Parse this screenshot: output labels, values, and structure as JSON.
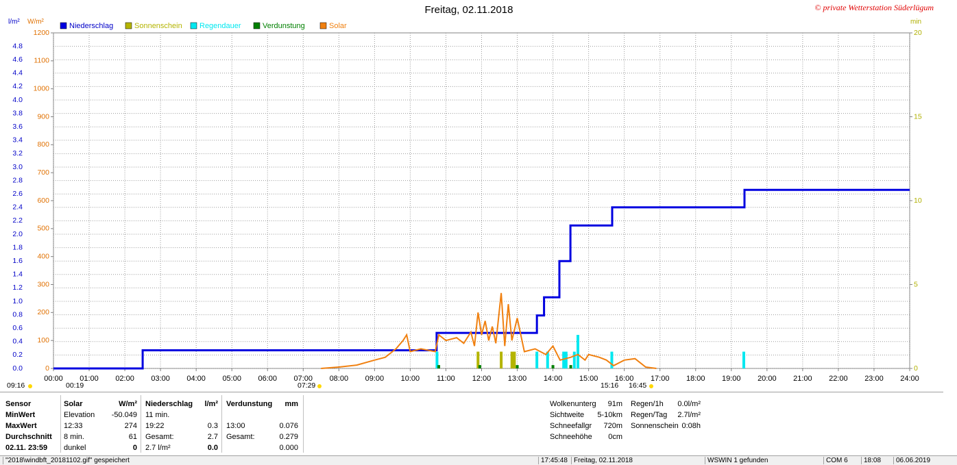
{
  "chart_data": {
    "type": "line",
    "title": "Freitag, 02.11.2018",
    "watermark": "© private Wetterstation Süderlügum",
    "y_label": "l/m²",
    "y2_label": "W/m²",
    "y3_label": "min",
    "ycolor": "#0000c8",
    "y2color": "#e07000",
    "y3color": "#b0b000",
    "xlim": [
      0,
      24
    ],
    "xticks": [
      {
        "value": 0,
        "label": "00:00"
      },
      {
        "value": 1,
        "label": "01:00"
      },
      {
        "value": 2,
        "label": "02:00"
      },
      {
        "value": 3,
        "label": "03:00"
      },
      {
        "value": 4,
        "label": "04:00"
      },
      {
        "value": 5,
        "label": "05:00"
      },
      {
        "value": 6,
        "label": "06:00"
      },
      {
        "value": 7,
        "label": "07:00"
      },
      {
        "value": 8,
        "label": "08:00"
      },
      {
        "value": 9,
        "label": "09:00"
      },
      {
        "value": 10,
        "label": "10:00"
      },
      {
        "value": 11,
        "label": "11:00"
      },
      {
        "value": 12,
        "label": "12:00"
      },
      {
        "value": 13,
        "label": "13:00"
      },
      {
        "value": 14,
        "label": "14:00"
      },
      {
        "value": 15,
        "label": "15:00"
      },
      {
        "value": 16,
        "label": "16:00"
      },
      {
        "value": 17,
        "label": "17:00"
      },
      {
        "value": 18,
        "label": "18:00"
      },
      {
        "value": 19,
        "label": "19:00"
      },
      {
        "value": 20,
        "label": "20:00"
      },
      {
        "value": 21,
        "label": "21:00"
      },
      {
        "value": 22,
        "label": "22:00"
      },
      {
        "value": 23,
        "label": "23:00"
      },
      {
        "value": 24,
        "label": "24:00"
      }
    ],
    "ylim": [
      0,
      5
    ],
    "yticks": [
      {
        "value": 0,
        "label": "0.0"
      },
      0.2,
      0.4,
      0.6,
      0.8,
      {
        "value": 1,
        "label": "1.0"
      },
      1.2,
      1.4,
      1.6,
      1.8,
      {
        "value": 2,
        "label": "2.0"
      },
      2.2,
      2.4,
      2.6,
      2.8,
      {
        "value": 3,
        "label": "3.0"
      },
      3.2,
      3.4,
      3.6,
      3.8,
      {
        "value": 4,
        "label": "4.0"
      },
      4.2,
      4.4,
      4.6,
      4.8
    ],
    "y2lim": [
      0,
      1200
    ],
    "y2ticks": [
      0,
      100,
      200,
      300,
      400,
      500,
      600,
      700,
      800,
      900,
      1000,
      1100,
      1200
    ],
    "y3lim": [
      0,
      20
    ],
    "y3ticks": [
      0,
      5,
      10,
      15,
      20
    ],
    "grid": true,
    "series": [
      {
        "name": "Niederschlag",
        "color": "#0000e0",
        "kind": "line",
        "x": [
          0,
          2.5,
          2.5,
          10.74,
          10.74,
          13.55,
          13.55,
          13.75,
          13.75,
          14.18,
          14.18,
          14.49,
          14.49,
          15.66,
          15.66,
          19.37,
          19.37,
          24
        ],
        "values": [
          0,
          0,
          0.27,
          0.27,
          0.53,
          0.53,
          0.79,
          0.79,
          1.06,
          1.06,
          1.6,
          1.6,
          2.13,
          2.13,
          2.4,
          2.4,
          2.66,
          2.66
        ]
      },
      {
        "name": "Sonnenschein",
        "color": "#b4b400",
        "kind": "bar",
        "axis": "y3",
        "x": [
          11.9,
          12.55,
          12.85,
          12.92
        ],
        "values": [
          1,
          1,
          1,
          1
        ]
      },
      {
        "name": "Regendauer",
        "color": "#00e8f0",
        "kind": "bar",
        "axis": "y3",
        "x": [
          10.75,
          13.55,
          13.85,
          14.3,
          14.37,
          14.6,
          14.7,
          15.65,
          19.35
        ],
        "values": [
          1,
          1,
          1,
          1,
          1,
          1,
          2,
          1,
          1
        ]
      },
      {
        "name": "Verdunstung",
        "color": "#008000",
        "kind": "bar",
        "axis": "y3",
        "x": [
          10.8,
          11.95,
          13.0,
          14.0,
          14.5
        ],
        "values": [
          0.2,
          0.2,
          0.2,
          0.2,
          0.2
        ]
      },
      {
        "name": "Solar",
        "color": "#f08010",
        "kind": "line",
        "axis": "y2",
        "x": [
          7.5,
          8.0,
          8.5,
          9.0,
          9.3,
          9.6,
          9.8,
          9.9,
          10.0,
          10.3,
          10.7,
          10.8,
          11.0,
          11.3,
          11.5,
          11.7,
          11.8,
          11.9,
          12.0,
          12.1,
          12.2,
          12.3,
          12.4,
          12.55,
          12.65,
          12.75,
          12.85,
          13.0,
          13.2,
          13.5,
          13.8,
          14.0,
          14.2,
          14.5,
          14.7,
          14.9,
          15.0,
          15.3,
          15.5,
          15.7,
          16.0,
          16.3,
          16.6,
          16.9
        ],
        "values": [
          0,
          5,
          12,
          30,
          40,
          70,
          100,
          120,
          60,
          70,
          60,
          120,
          100,
          110,
          90,
          130,
          80,
          200,
          120,
          170,
          100,
          150,
          90,
          270,
          80,
          230,
          100,
          180,
          60,
          70,
          50,
          80,
          30,
          40,
          50,
          30,
          50,
          40,
          30,
          10,
          30,
          35,
          5,
          0
        ]
      }
    ],
    "annotations": [
      "09:16",
      "00:19",
      "07:29",
      "15:16",
      "16:45"
    ]
  },
  "panel": {
    "columns": [
      {
        "rows": [
          [
            "Sensor"
          ],
          [
            "MinWert"
          ],
          [
            "MaxWert"
          ],
          [
            "Durchschnitt"
          ],
          [
            "02.11.  23:59"
          ]
        ]
      },
      {
        "rows": [
          [
            "Solar",
            "W/m²"
          ],
          [
            "Elevation",
            "-50.049"
          ],
          [
            "12:33",
            "274"
          ],
          [
            "8 min.",
            "61"
          ],
          [
            "dunkel",
            "0"
          ]
        ]
      },
      {
        "rows": [
          [
            "Niederschlag",
            "l/m²"
          ],
          [
            "11 min."
          ],
          [
            "19:22",
            "0.3"
          ],
          [
            "Gesamt:",
            "2.7"
          ],
          [
            "2.7 l/m²",
            "0.0"
          ]
        ]
      },
      {
        "rows": [
          [
            "Verdunstung",
            "mm"
          ],
          null,
          [
            "13:00",
            "0.076"
          ],
          [
            "Gesamt:",
            "0.279"
          ],
          [
            "0.000"
          ]
        ]
      },
      {
        "rows": [
          [
            "Wolkenunterg",
            "91m"
          ],
          [
            "Sichtweite",
            "5-10km"
          ],
          [
            "Schneefallgr",
            "720m"
          ],
          [
            "Schneehöhe",
            "0cm"
          ]
        ]
      },
      {
        "rows": [
          [
            "Regen/1h",
            "0.0l/m²"
          ],
          [
            "Regen/Tag",
            "2.7l/m²"
          ],
          [
            "Sonnenschein",
            "0:08h"
          ]
        ]
      }
    ]
  },
  "status": [
    "\"2018\\windbft_20181102.gif\" gespeichert",
    "17:45:48",
    "Freitag, 02.11.2018",
    "WSWIN 1 gefunden",
    "COM 6",
    "18:08",
    "06.06.2019"
  ]
}
